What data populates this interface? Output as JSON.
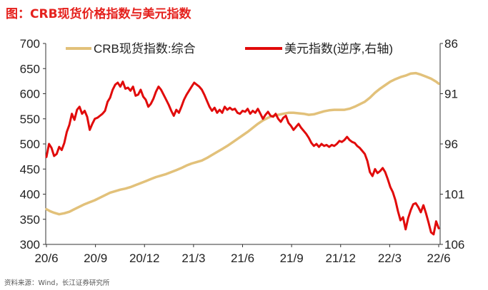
{
  "title": "图：CRB现货价格指数与美元指数",
  "source": "资料来源：Wind，长江证券研究所",
  "chart_data": {
    "type": "line",
    "x_tick_labels": [
      "20/6",
      "20/9",
      "20/12",
      "21/3",
      "21/6",
      "21/9",
      "21/12",
      "22/3",
      "22/6"
    ],
    "x_range": [
      "2020-06",
      "2022-06"
    ],
    "y_left": {
      "min": 300,
      "max": 700,
      "ticks": [
        300,
        350,
        400,
        450,
        500,
        550,
        600,
        650,
        700
      ]
    },
    "y_right": {
      "min": 86,
      "max": 106,
      "ticks": [
        86,
        91,
        96,
        101,
        106
      ],
      "inverted": true
    },
    "grid": false,
    "legend_position": "top",
    "series": [
      {
        "name": "CRB现货指数:综合",
        "axis": "left",
        "color": "#e2c17a",
        "points": [
          [
            0,
            370
          ],
          [
            3,
            366
          ],
          [
            6,
            363
          ],
          [
            10,
            360
          ],
          [
            14,
            362
          ],
          [
            18,
            365
          ],
          [
            22,
            370
          ],
          [
            26,
            375
          ],
          [
            30,
            380
          ],
          [
            34,
            384
          ],
          [
            38,
            388
          ],
          [
            42,
            393
          ],
          [
            46,
            398
          ],
          [
            50,
            403
          ],
          [
            54,
            406
          ],
          [
            58,
            409
          ],
          [
            62,
            411
          ],
          [
            66,
            414
          ],
          [
            70,
            418
          ],
          [
            74,
            422
          ],
          [
            78,
            426
          ],
          [
            82,
            430
          ],
          [
            86,
            434
          ],
          [
            90,
            437
          ],
          [
            94,
            440
          ],
          [
            98,
            444
          ],
          [
            102,
            448
          ],
          [
            106,
            452
          ],
          [
            110,
            457
          ],
          [
            114,
            461
          ],
          [
            118,
            464
          ],
          [
            122,
            467
          ],
          [
            126,
            472
          ],
          [
            130,
            478
          ],
          [
            134,
            484
          ],
          [
            138,
            490
          ],
          [
            142,
            496
          ],
          [
            146,
            503
          ],
          [
            150,
            510
          ],
          [
            154,
            517
          ],
          [
            158,
            524
          ],
          [
            162,
            532
          ],
          [
            166,
            540
          ],
          [
            170,
            547
          ],
          [
            174,
            552
          ],
          [
            178,
            556
          ],
          [
            182,
            558
          ],
          [
            186,
            560
          ],
          [
            190,
            562
          ],
          [
            194,
            562
          ],
          [
            198,
            561
          ],
          [
            202,
            560
          ],
          [
            206,
            558
          ],
          [
            210,
            559
          ],
          [
            214,
            562
          ],
          [
            218,
            565
          ],
          [
            222,
            567
          ],
          [
            226,
            568
          ],
          [
            230,
            568
          ],
          [
            234,
            568
          ],
          [
            238,
            570
          ],
          [
            242,
            574
          ],
          [
            246,
            579
          ],
          [
            250,
            584
          ],
          [
            254,
            592
          ],
          [
            258,
            602
          ],
          [
            262,
            610
          ],
          [
            266,
            617
          ],
          [
            270,
            624
          ],
          [
            274,
            629
          ],
          [
            278,
            633
          ],
          [
            282,
            636
          ],
          [
            286,
            640
          ],
          [
            290,
            641
          ],
          [
            294,
            638
          ],
          [
            298,
            634
          ],
          [
            302,
            630
          ],
          [
            306,
            624
          ],
          [
            308,
            620
          ]
        ]
      },
      {
        "name": "美元指数(逆序,右轴)",
        "axis": "right",
        "color": "#e10b0b",
        "points": [
          [
            0,
            97.3
          ],
          [
            2,
            96.0
          ],
          [
            4,
            96.4
          ],
          [
            6,
            97.2
          ],
          [
            8,
            97.0
          ],
          [
            10,
            96.3
          ],
          [
            12,
            96.6
          ],
          [
            14,
            95.9
          ],
          [
            16,
            94.8
          ],
          [
            18,
            94.1
          ],
          [
            20,
            93.0
          ],
          [
            22,
            93.6
          ],
          [
            24,
            92.6
          ],
          [
            26,
            92.3
          ],
          [
            28,
            93.0
          ],
          [
            30,
            92.7
          ],
          [
            32,
            93.3
          ],
          [
            34,
            94.6
          ],
          [
            36,
            94.0
          ],
          [
            38,
            93.5
          ],
          [
            40,
            93.4
          ],
          [
            42,
            93.2
          ],
          [
            44,
            93.0
          ],
          [
            46,
            92.7
          ],
          [
            48,
            91.8
          ],
          [
            50,
            91.4
          ],
          [
            52,
            90.6
          ],
          [
            54,
            90.1
          ],
          [
            56,
            89.9
          ],
          [
            58,
            90.3
          ],
          [
            60,
            89.8
          ],
          [
            62,
            90.5
          ],
          [
            64,
            90.4
          ],
          [
            66,
            90.7
          ],
          [
            68,
            90.3
          ],
          [
            70,
            91.2
          ],
          [
            72,
            91.1
          ],
          [
            74,
            90.6
          ],
          [
            76,
            91.3
          ],
          [
            78,
            91.6
          ],
          [
            80,
            92.3
          ],
          [
            82,
            92.0
          ],
          [
            84,
            91.5
          ],
          [
            86,
            90.8
          ],
          [
            88,
            90.3
          ],
          [
            90,
            90.6
          ],
          [
            92,
            91.1
          ],
          [
            94,
            91.6
          ],
          [
            96,
            92.1
          ],
          [
            98,
            92.7
          ],
          [
            100,
            93.2
          ],
          [
            102,
            92.6
          ],
          [
            104,
            92.9
          ],
          [
            106,
            92.3
          ],
          [
            108,
            91.6
          ],
          [
            110,
            91.1
          ],
          [
            112,
            90.7
          ],
          [
            114,
            90.3
          ],
          [
            116,
            89.9
          ],
          [
            118,
            90.1
          ],
          [
            120,
            90.3
          ],
          [
            122,
            90.6
          ],
          [
            124,
            91.1
          ],
          [
            126,
            91.7
          ],
          [
            128,
            92.3
          ],
          [
            130,
            92.7
          ],
          [
            132,
            92.4
          ],
          [
            134,
            92.9
          ],
          [
            136,
            92.6
          ],
          [
            138,
            92.9
          ],
          [
            140,
            92.3
          ],
          [
            142,
            92.6
          ],
          [
            144,
            92.4
          ],
          [
            146,
            92.6
          ],
          [
            148,
            92.5
          ],
          [
            150,
            92.9
          ],
          [
            152,
            93.0
          ],
          [
            154,
            92.7
          ],
          [
            156,
            92.8
          ],
          [
            158,
            92.5
          ],
          [
            160,
            93.0
          ],
          [
            162,
            92.7
          ],
          [
            164,
            92.9
          ],
          [
            166,
            92.5
          ],
          [
            168,
            93.0
          ],
          [
            170,
            93.5
          ],
          [
            172,
            93.1
          ],
          [
            174,
            92.8
          ],
          [
            176,
            93.2
          ],
          [
            178,
            93.3
          ],
          [
            180,
            93.0
          ],
          [
            182,
            93.5
          ],
          [
            184,
            93.8
          ],
          [
            186,
            93.4
          ],
          [
            188,
            93.2
          ],
          [
            190,
            93.9
          ],
          [
            192,
            94.2
          ],
          [
            194,
            94.6
          ],
          [
            196,
            94.3
          ],
          [
            198,
            94.0
          ],
          [
            200,
            94.4
          ],
          [
            202,
            94.7
          ],
          [
            204,
            95.0
          ],
          [
            206,
            95.4
          ],
          [
            208,
            95.9
          ],
          [
            210,
            96.2
          ],
          [
            212,
            96.0
          ],
          [
            214,
            96.3
          ],
          [
            216,
            96.0
          ],
          [
            218,
            96.2
          ],
          [
            220,
            96.1
          ],
          [
            222,
            96.3
          ],
          [
            224,
            96.1
          ],
          [
            226,
            96.2
          ],
          [
            228,
            96.0
          ],
          [
            230,
            95.7
          ],
          [
            232,
            95.8
          ],
          [
            234,
            95.6
          ],
          [
            236,
            95.3
          ],
          [
            238,
            95.6
          ],
          [
            240,
            95.8
          ],
          [
            242,
            95.9
          ],
          [
            244,
            96.2
          ],
          [
            246,
            96.4
          ],
          [
            248,
            96.7
          ],
          [
            250,
            97.0
          ],
          [
            252,
            97.7
          ],
          [
            254,
            98.8
          ],
          [
            256,
            99.2
          ],
          [
            258,
            98.5
          ],
          [
            260,
            98.9
          ],
          [
            262,
            98.7
          ],
          [
            264,
            98.4
          ],
          [
            266,
            98.8
          ],
          [
            268,
            99.5
          ],
          [
            270,
            100.3
          ],
          [
            272,
            100.8
          ],
          [
            274,
            101.6
          ],
          [
            276,
            102.7
          ],
          [
            278,
            103.6
          ],
          [
            280,
            103.3
          ],
          [
            282,
            104.5
          ],
          [
            284,
            103.4
          ],
          [
            286,
            102.6
          ],
          [
            288,
            102.0
          ],
          [
            290,
            101.9
          ],
          [
            292,
            102.3
          ],
          [
            294,
            102.8
          ],
          [
            296,
            102.1
          ],
          [
            298,
            102.9
          ],
          [
            300,
            103.8
          ],
          [
            302,
            104.8
          ],
          [
            304,
            105.0
          ],
          [
            306,
            103.7
          ],
          [
            308,
            104.4
          ]
        ]
      }
    ]
  }
}
